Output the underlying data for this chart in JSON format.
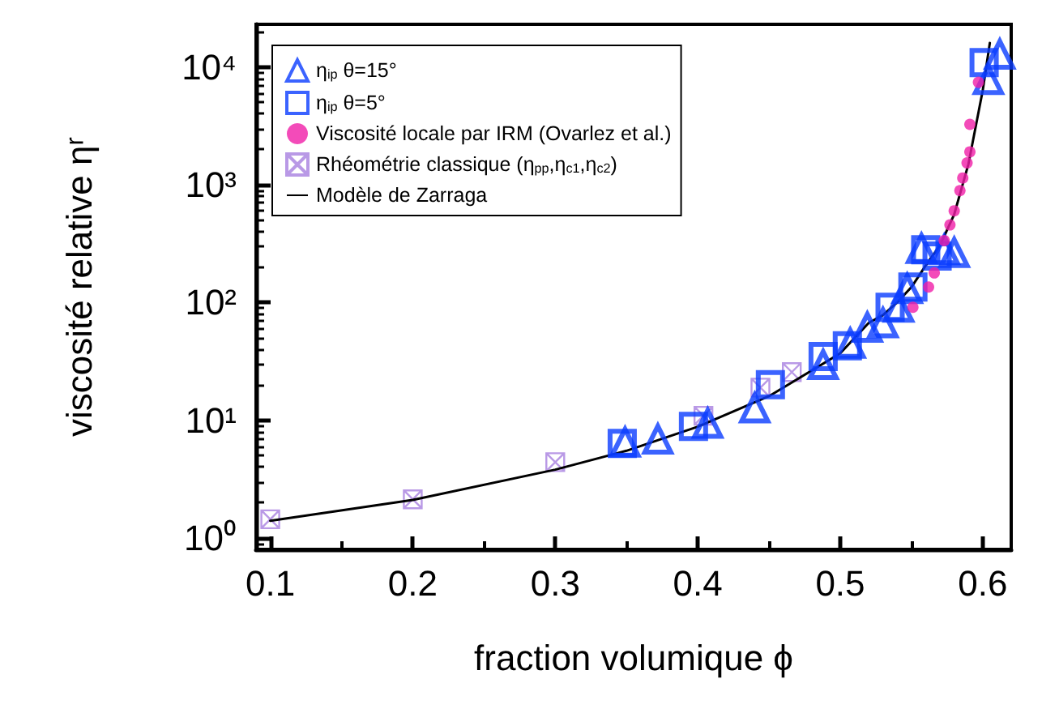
{
  "chart_data": {
    "type": "scatter",
    "xlabel": "fraction volumique ϕ",
    "ylabel": "viscosité relative ηʳ",
    "log": "y",
    "grid": false,
    "legend": "top left",
    "xlim": [
      0.09,
      0.62
    ],
    "xticks": [
      0.1,
      0.2,
      0.3,
      0.4,
      0.5,
      0.6
    ],
    "ylim": [
      0.8,
      23000
    ],
    "yticks": [
      {
        "value": 1,
        "label": "10⁰"
      },
      {
        "value": 10,
        "label": "10¹"
      },
      {
        "value": 100,
        "label": "10²"
      },
      {
        "value": 1000,
        "label": "10³"
      },
      {
        "value": 10000,
        "label": "10⁴"
      }
    ],
    "series": [
      {
        "name": "η$_{ip}$ θ=15°",
        "color": "#0a3cff",
        "marker": "triangle",
        "x": [
          0.349,
          0.372,
          0.407,
          0.44,
          0.488,
          0.507,
          0.519,
          0.53,
          0.541,
          0.547,
          0.557,
          0.573,
          0.58,
          0.604,
          0.612
        ],
        "values": [
          6.5,
          6.9,
          9.4,
          12.7,
          29.6,
          45,
          61.5,
          67,
          91,
          131,
          287,
          280,
          265,
          7800,
          12800
        ]
      },
      {
        "name": "η$_{ip}$ θ=5°",
        "color": "#0a3cff",
        "marker": "square",
        "x": [
          0.347,
          0.397,
          0.451,
          0.488,
          0.505,
          0.535,
          0.551,
          0.56,
          0.568,
          0.601
        ],
        "values": [
          6.35,
          8.85,
          20,
          34.7,
          42.9,
          91,
          135,
          280,
          248,
          10900
        ]
      },
      {
        "name": "Viscosité locale par IRM (Ovarlez et al.)",
        "color": "#f01ea8",
        "marker": "circle",
        "x": [
          0.551,
          0.562,
          0.566,
          0.573,
          0.577,
          0.58,
          0.584,
          0.586,
          0.589,
          0.591,
          0.591,
          0.597
        ],
        "values": [
          91,
          135,
          178,
          335,
          455,
          600,
          890,
          1140,
          1530,
          1900,
          3250,
          7400
        ]
      },
      {
        "name": "Rhéométrie classique (η$_{pp}$,η$_{c1}$,η$_{c2}$)",
        "color": "#a77fe0",
        "marker": "cross",
        "x": [
          0.1,
          0.2,
          0.3,
          0.404,
          0.444,
          0.466
        ],
        "values": [
          1.44,
          2.13,
          4.4,
          10.9,
          18.9,
          25.6
        ]
      },
      {
        "name": "Modèle de Zarraga",
        "type": "line",
        "color": "#000000",
        "marker": "none",
        "line_style": "solid",
        "x": [
          0.1,
          0.2,
          0.3,
          0.35,
          0.4,
          0.45,
          0.5,
          0.52,
          0.53,
          0.54,
          0.55,
          0.56,
          0.57,
          0.58,
          0.59,
          0.6,
          0.605
        ],
        "values": [
          1.4,
          2.1,
          3.8,
          5.5,
          8.8,
          16,
          37,
          67,
          78,
          100,
          135,
          206,
          305,
          560,
          1500,
          6300,
          16000
        ]
      }
    ]
  }
}
